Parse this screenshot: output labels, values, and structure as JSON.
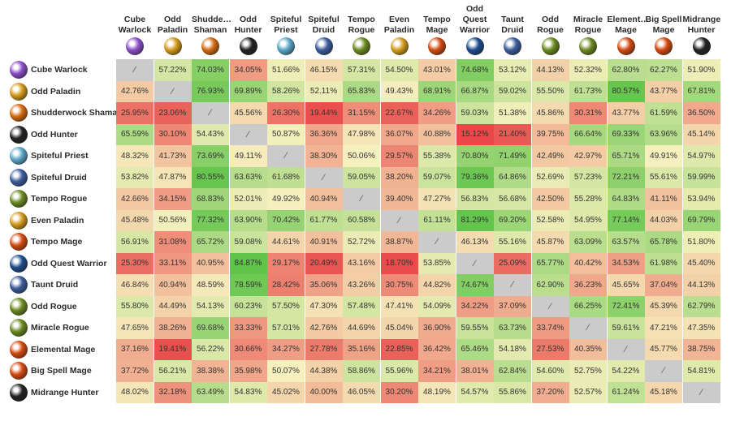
{
  "classes": [
    {
      "key": "cube-warlock",
      "col": [
        "Cube",
        "Warlock"
      ],
      "row": "Cube Warlock",
      "cls": "warlock",
      "color": "#8b4fc8"
    },
    {
      "key": "odd-paladin",
      "col": [
        "Odd",
        "Paladin"
      ],
      "row": "Odd Paladin",
      "cls": "paladin",
      "color": "#d49a1c"
    },
    {
      "key": "shudderwock-shaman",
      "col": [
        "Shudde…",
        "Shaman"
      ],
      "row": "Shudderwock Shaman",
      "cls": "shaman",
      "color": "#d46a10"
    },
    {
      "key": "odd-hunter",
      "col": [
        "Odd",
        "Hunter"
      ],
      "row": "Odd Hunter",
      "cls": "hunter",
      "color": "#222222"
    },
    {
      "key": "spiteful-priest",
      "col": [
        "Spiteful",
        "Priest"
      ],
      "row": "Spiteful Priest",
      "cls": "priest",
      "color": "#5aa6c8"
    },
    {
      "key": "spiteful-druid",
      "col": [
        "Spiteful",
        "Druid"
      ],
      "row": "Spiteful Druid",
      "cls": "druid",
      "color": "#3c5c9c"
    },
    {
      "key": "tempo-rogue",
      "col": [
        "Tempo",
        "Rogue"
      ],
      "row": "Tempo Rogue",
      "cls": "rogue",
      "color": "#6a8a20"
    },
    {
      "key": "even-paladin",
      "col": [
        "Even",
        "Paladin"
      ],
      "row": "Even Paladin",
      "cls": "paladin",
      "color": "#d49a1c"
    },
    {
      "key": "tempo-mage",
      "col": [
        "Tempo",
        "Mage"
      ],
      "row": "Tempo Mage",
      "cls": "mage",
      "color": "#d44a10"
    },
    {
      "key": "odd-quest-warrior",
      "col": [
        "Odd",
        "Quest",
        "Warrior"
      ],
      "row": "Odd Quest Warrior",
      "cls": "warrior",
      "color": "#1c4c8c"
    },
    {
      "key": "taunt-druid",
      "col": [
        "Taunt",
        "Druid"
      ],
      "row": "Taunt Druid",
      "cls": "druid",
      "color": "#3c5c9c"
    },
    {
      "key": "odd-rogue",
      "col": [
        "Odd",
        "Rogue"
      ],
      "row": "Odd Rogue",
      "cls": "rogue",
      "color": "#6a8a20"
    },
    {
      "key": "miracle-rogue",
      "col": [
        "Miracle",
        "Rogue"
      ],
      "row": "Miracle Rogue",
      "cls": "rogue",
      "color": "#6a8a20"
    },
    {
      "key": "elemental-mage",
      "col": [
        "Element…",
        "Mage"
      ],
      "row": "Elemental Mage",
      "cls": "mage",
      "color": "#d44a10"
    },
    {
      "key": "big-spell-mage",
      "col": [
        "Big Spell",
        "Mage"
      ],
      "row": "Big Spell Mage",
      "cls": "mage",
      "color": "#d44a10"
    },
    {
      "key": "midrange-hunter",
      "col": [
        "Midrange",
        "Hunter"
      ],
      "row": "Midrange Hunter",
      "cls": "hunter",
      "color": "#222222"
    }
  ],
  "self_symbol": "⁄",
  "winrates": [
    [
      null,
      57.22,
      74.03,
      34.05,
      51.66,
      46.15,
      57.31,
      54.5,
      43.01,
      74.68,
      53.12,
      44.13,
      52.32,
      62.8,
      62.27,
      51.9
    ],
    [
      42.76,
      null,
      76.93,
      69.89,
      58.26,
      52.11,
      65.83,
      49.43,
      68.91,
      66.87,
      59.02,
      55.5,
      61.73,
      80.57,
      43.77,
      67.81
    ],
    [
      25.95,
      23.06,
      null,
      45.56,
      26.3,
      19.44,
      31.15,
      22.67,
      34.26,
      59.03,
      51.38,
      45.86,
      30.31,
      43.77,
      61.59,
      36.5
    ],
    [
      65.59,
      30.1,
      54.43,
      null,
      50.87,
      36.36,
      47.98,
      36.07,
      40.88,
      15.12,
      21.4,
      39.75,
      66.64,
      69.33,
      63.96,
      45.14
    ],
    [
      48.32,
      41.73,
      73.69,
      49.11,
      null,
      38.3,
      50.06,
      29.57,
      55.38,
      70.8,
      71.49,
      42.49,
      42.97,
      65.71,
      49.91,
      54.97
    ],
    [
      53.82,
      47.87,
      80.55,
      63.63,
      61.68,
      null,
      59.05,
      38.2,
      59.07,
      79.36,
      64.86,
      52.69,
      57.23,
      72.21,
      55.61,
      59.99
    ],
    [
      42.66,
      34.15,
      68.83,
      52.01,
      49.92,
      40.94,
      null,
      39.4,
      47.27,
      56.83,
      56.68,
      42.5,
      55.28,
      64.83,
      41.11,
      53.94
    ],
    [
      45.48,
      50.56,
      77.32,
      63.9,
      70.42,
      61.77,
      60.58,
      null,
      61.11,
      81.29,
      69.2,
      52.58,
      54.95,
      77.14,
      44.03,
      69.79
    ],
    [
      56.91,
      31.08,
      65.72,
      59.08,
      44.61,
      40.91,
      52.72,
      38.87,
      null,
      46.13,
      55.16,
      45.87,
      63.09,
      63.57,
      65.78,
      51.8
    ],
    [
      25.3,
      33.11,
      40.95,
      84.87,
      29.17,
      20.49,
      43.16,
      18.7,
      53.85,
      null,
      25.09,
      65.77,
      40.42,
      34.53,
      61.98,
      45.4
    ],
    [
      46.84,
      40.94,
      48.59,
      78.59,
      28.42,
      35.06,
      43.26,
      30.75,
      44.82,
      74.67,
      null,
      62.9,
      36.23,
      45.65,
      37.04,
      44.13
    ],
    [
      55.8,
      44.49,
      54.13,
      60.23,
      57.5,
      47.3,
      57.48,
      47.41,
      54.09,
      34.22,
      37.09,
      null,
      66.25,
      72.41,
      45.39,
      62.79
    ],
    [
      47.65,
      38.26,
      69.68,
      33.33,
      57.01,
      42.76,
      44.69,
      45.04,
      36.9,
      59.55,
      63.73,
      33.74,
      null,
      59.61,
      47.21,
      47.35
    ],
    [
      37.16,
      19.41,
      56.22,
      30.66,
      34.27,
      27.78,
      35.16,
      22.85,
      36.42,
      65.46,
      54.18,
      27.53,
      40.35,
      null,
      45.77,
      38.75
    ],
    [
      37.72,
      56.21,
      38.38,
      35.98,
      50.07,
      44.38,
      58.86,
      55.96,
      34.21,
      38.01,
      62.84,
      54.6,
      52.75,
      54.22,
      null,
      54.81
    ],
    [
      48.02,
      32.18,
      63.49,
      54.83,
      45.02,
      40.0,
      46.05,
      30.2,
      48.19,
      54.57,
      55.86,
      37.2,
      52.57,
      61.24,
      45.18,
      null
    ]
  ]
}
